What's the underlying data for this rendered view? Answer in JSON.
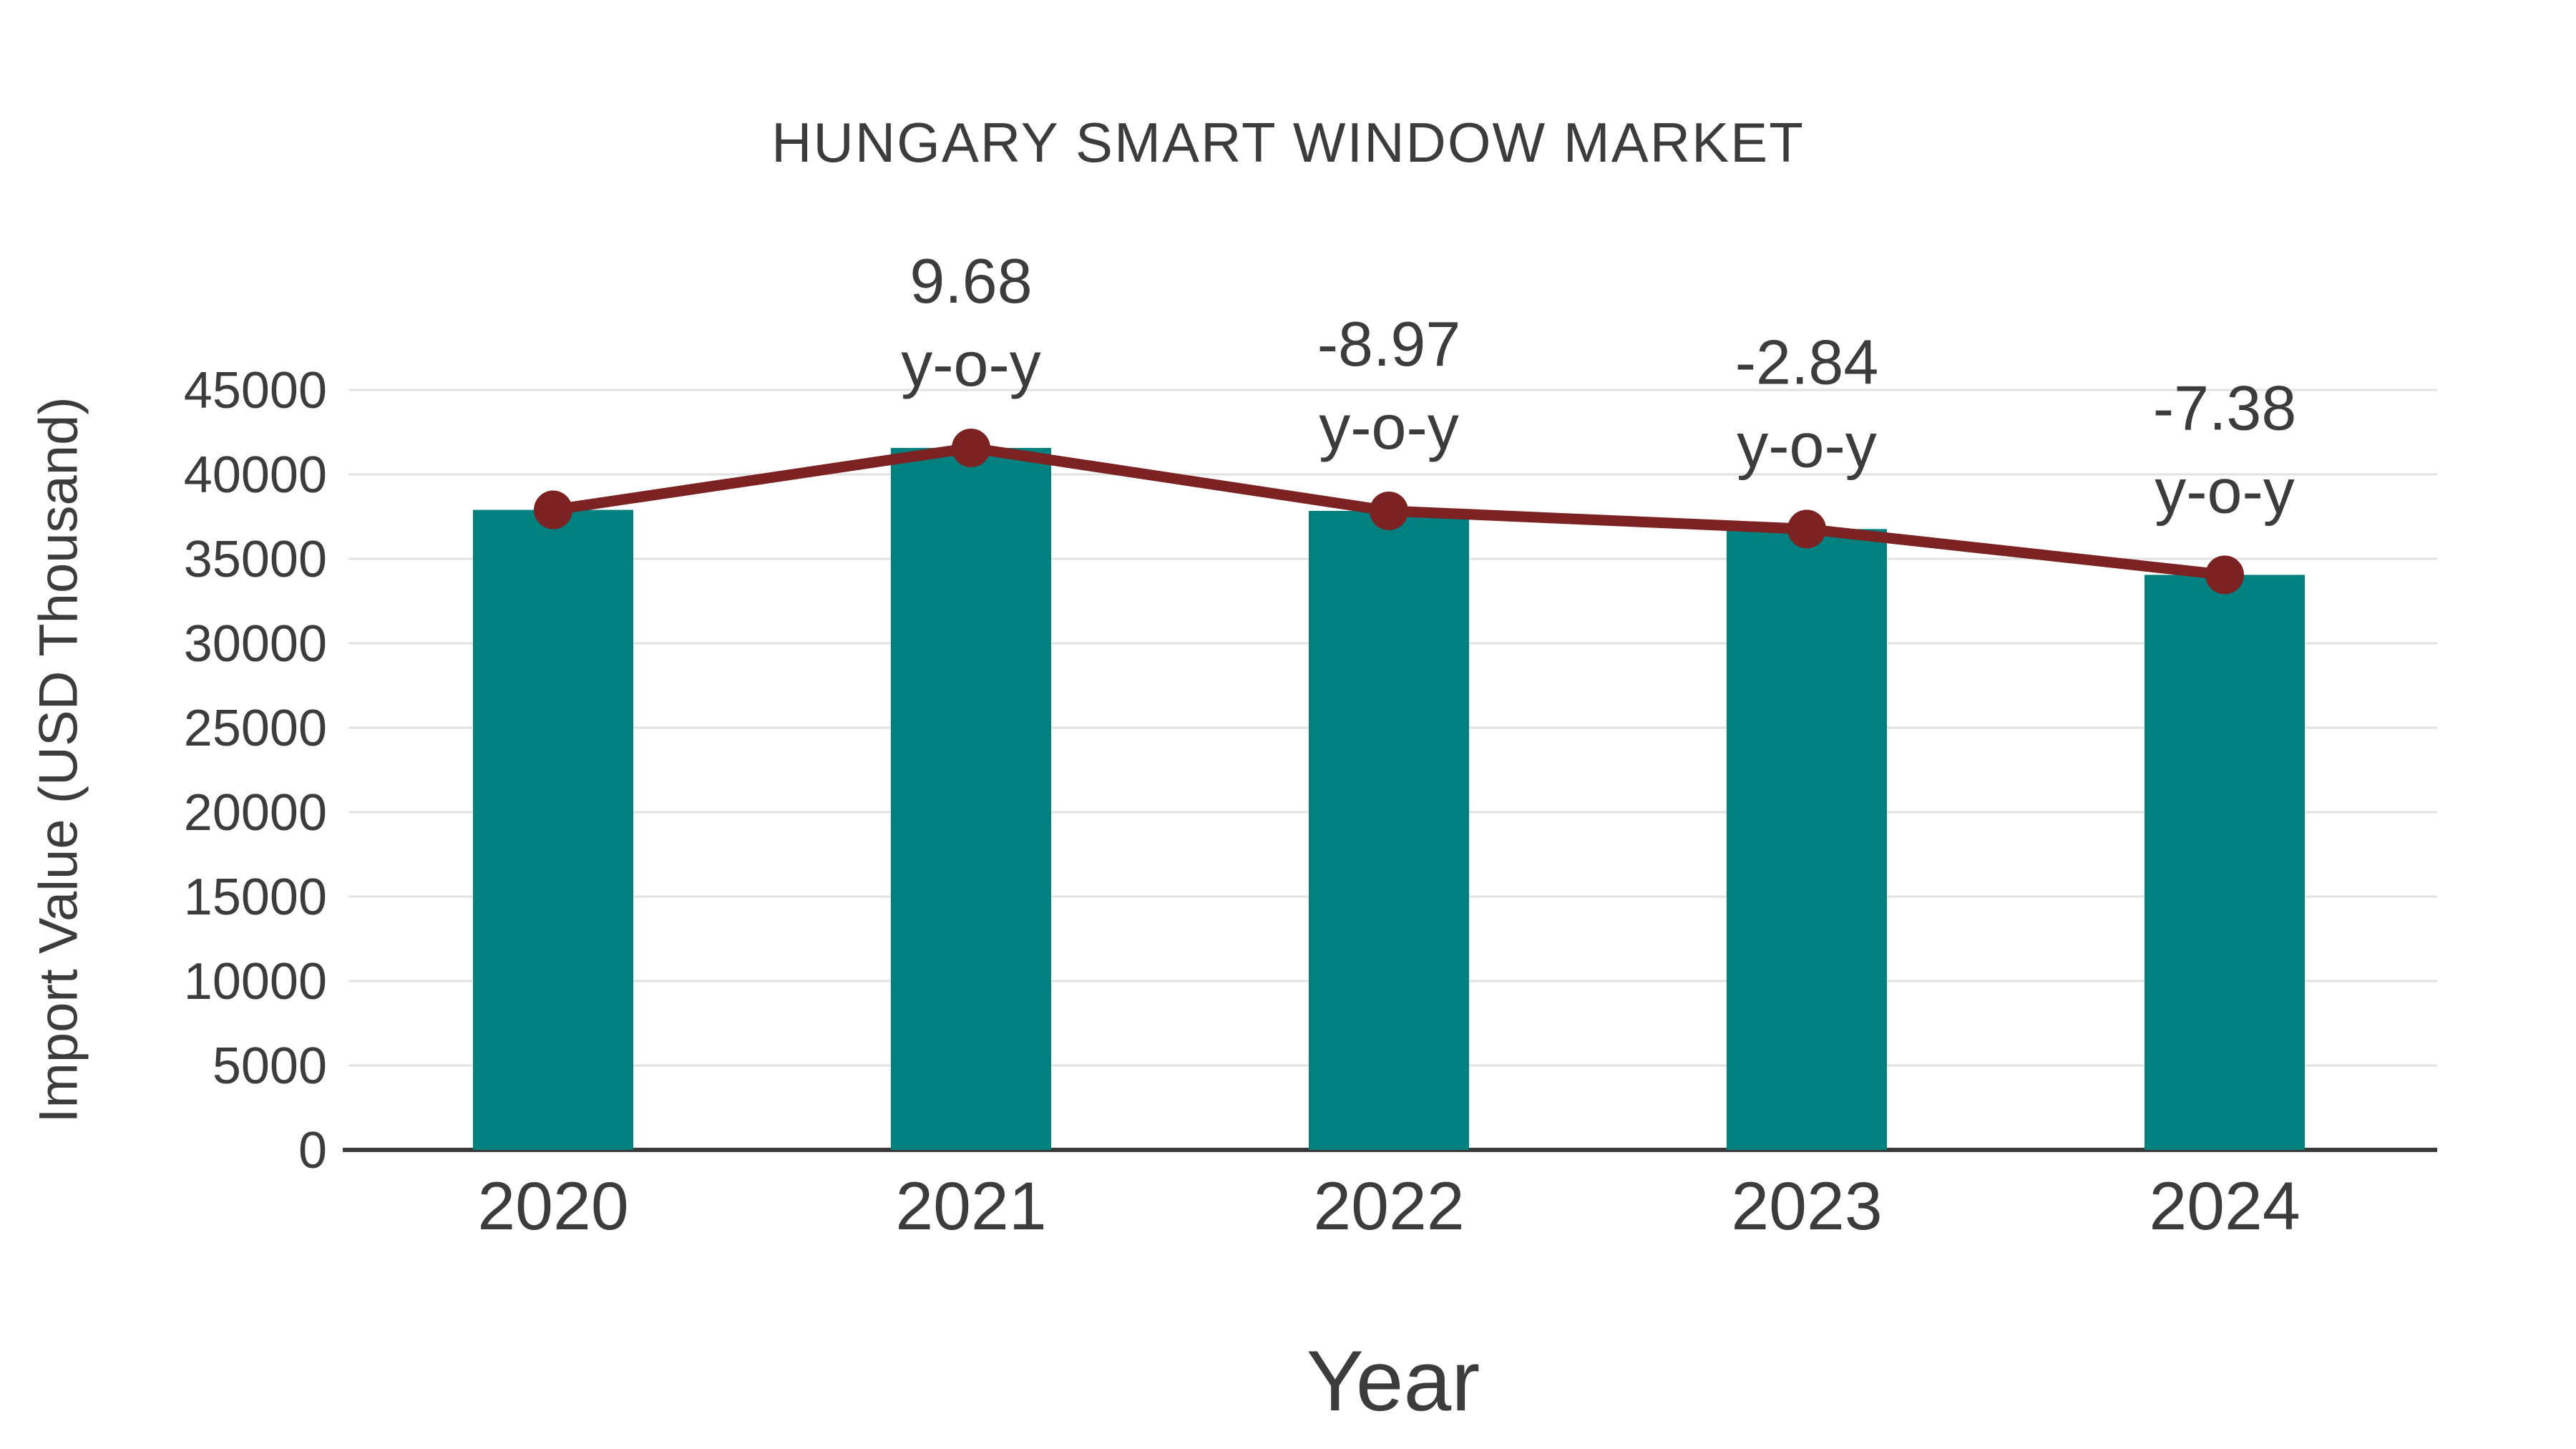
{
  "chart_data": {
    "type": "bar",
    "title": "HUNGARY SMART WINDOW MARKET",
    "xlabel": "Year",
    "ylabel": "Import Value (USD Thousand)",
    "categories": [
      "2020",
      "2021",
      "2022",
      "2023",
      "2024"
    ],
    "series": [
      {
        "name": "import-value-bars",
        "type": "bar",
        "values": [
          37900,
          41569,
          37840,
          36765,
          34052
        ]
      },
      {
        "name": "import-value-trend-line",
        "type": "line",
        "values": [
          37900,
          41569,
          37840,
          36765,
          34052
        ]
      }
    ],
    "annotations": [
      {
        "category_index": 1,
        "value_label": "9.68",
        "sub_label": "y-o-y"
      },
      {
        "category_index": 2,
        "value_label": "-8.97",
        "sub_label": "y-o-y"
      },
      {
        "category_index": 3,
        "value_label": "-2.84",
        "sub_label": "y-o-y"
      },
      {
        "category_index": 4,
        "value_label": "-7.38",
        "sub_label": "y-o-y"
      }
    ],
    "ylim": [
      0,
      45000
    ],
    "ytick_step": 5000,
    "ytick_labels": [
      "0",
      "5000",
      "10000",
      "15000",
      "20000",
      "25000",
      "30000",
      "35000",
      "40000",
      "45000"
    ],
    "grid": true,
    "legend": false,
    "colors": {
      "bar": "#00807E",
      "line": "#7D2222",
      "marker": "#7D2222",
      "text": "#3C3C3C",
      "grid": "#E2E2E2",
      "axis": "#3A3A3A",
      "background": "#FFFFFF"
    }
  }
}
